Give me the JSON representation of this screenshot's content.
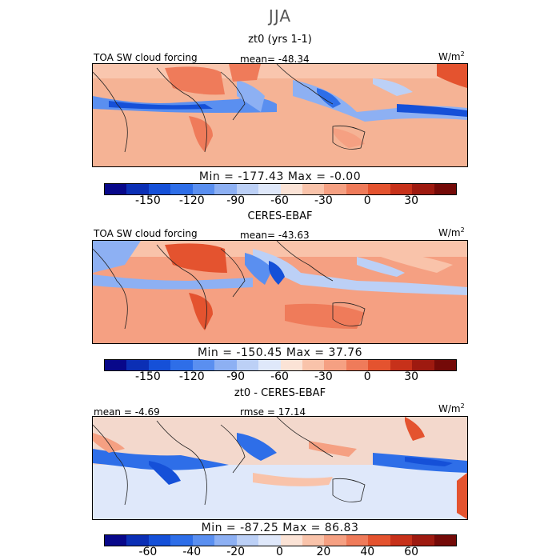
{
  "season": "JJA",
  "units": "W/m",
  "units_sup": "2",
  "panel1": {
    "title": "zt0 (yrs 1-1)",
    "variable": "TOA SW cloud forcing",
    "stat": "mean= -48.34",
    "minmax": "Min = -177.43 Max = -0.00"
  },
  "panel2": {
    "title": "CERES-EBAF",
    "variable": "TOA SW cloud forcing",
    "stat": "mean= -43.63",
    "minmax": "Min = -150.45 Max = 37.76"
  },
  "panel3": {
    "title": "zt0 - CERES-EBAF",
    "stat_left": "mean = -4.69",
    "stat_mid": "rmse = 17.14",
    "minmax": "Min = -87.25 Max = 86.83"
  },
  "colorbar_colors": [
    "#08088a",
    "#0b2fb5",
    "#1550d8",
    "#2e6ee8",
    "#5a8ff0",
    "#8db0f3",
    "#bcd0f6",
    "#dfe8fa",
    "#fbe3d6",
    "#f9c3aa",
    "#f5a082",
    "#ef7b5a",
    "#e4532f",
    "#c7311a",
    "#9e1a10",
    "#740a08"
  ],
  "ticks_abs": [
    "-150",
    "-120",
    "-90",
    "-60",
    "-30",
    "0",
    "30"
  ],
  "ticks_diff": [
    "-60",
    "-40",
    "-20",
    "0",
    "20",
    "40",
    "60"
  ]
}
